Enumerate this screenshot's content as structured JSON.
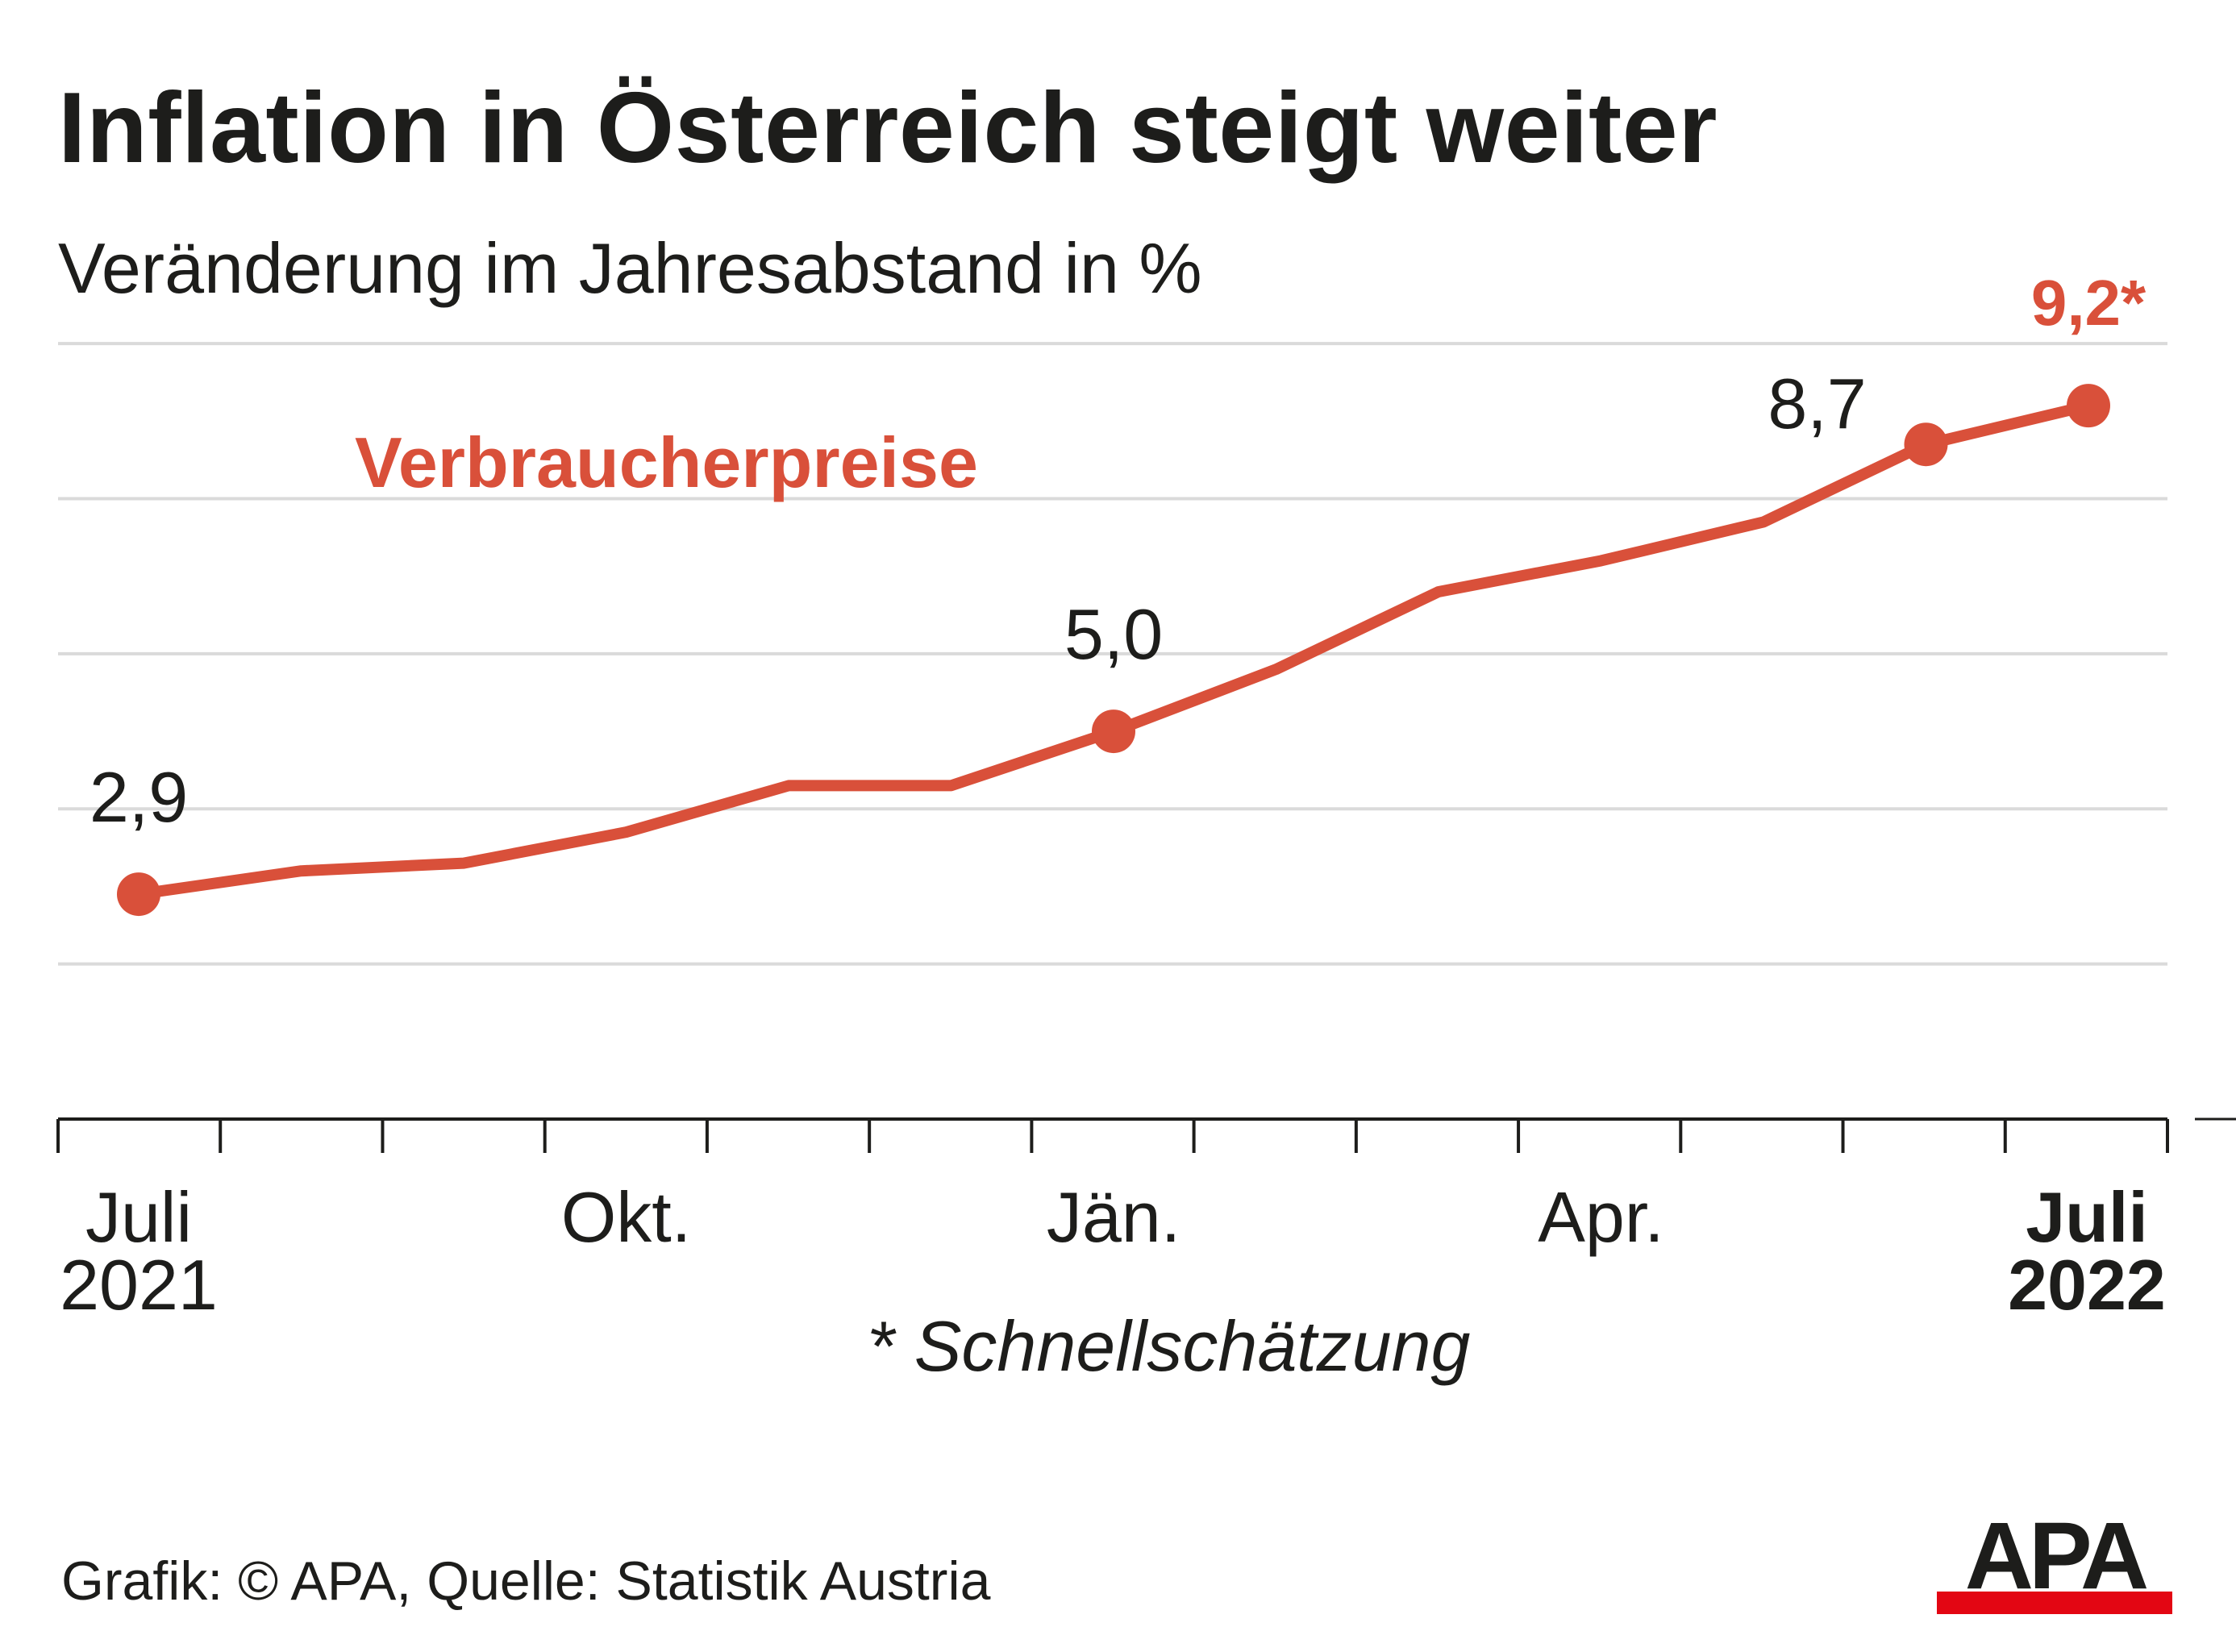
{
  "header": {
    "title": "Inflation in Österreich steigt weiter",
    "subtitle": "Veränderung im Jahresabstand in %"
  },
  "footer": {
    "source": "Grafik: © APA, Quelle: Statistik Austria"
  },
  "logo": {
    "text": "APA",
    "stripe_color": "#e30613"
  },
  "colors": {
    "line": "#d9503a",
    "grid": "#dadada",
    "axis": "#1d1d1b",
    "text": "#1d1d1b"
  },
  "chart_data": {
    "type": "line",
    "title": "Inflation in Österreich steigt weiter",
    "subtitle": "Veränderung im Jahresabstand in %",
    "series_label": "Verbraucherpreise",
    "x": [
      "2021-07",
      "2021-08",
      "2021-09",
      "2021-10",
      "2021-11",
      "2021-12",
      "2022-01",
      "2022-02",
      "2022-03",
      "2022-04",
      "2022-05",
      "2022-06",
      "2022-07"
    ],
    "series": [
      {
        "name": "Verbraucherpreise",
        "values": [
          2.9,
          3.2,
          3.3,
          3.7,
          4.3,
          4.3,
          5.0,
          5.8,
          6.8,
          7.2,
          7.7,
          8.7,
          9.2
        ]
      }
    ],
    "ylim": [
      0,
      11
    ],
    "y_grid": [
      2,
      4,
      6,
      8,
      10
    ],
    "grid": true,
    "x_ticks": 14,
    "x_tick_labels": [
      {
        "index": 0,
        "lines": [
          "Juli",
          "2021"
        ],
        "bold": false
      },
      {
        "index": 3,
        "lines": [
          "Okt."
        ],
        "bold": false
      },
      {
        "index": 6,
        "lines": [
          "Jän."
        ],
        "bold": false
      },
      {
        "index": 9,
        "lines": [
          "Apr."
        ],
        "bold": false
      },
      {
        "index": 12,
        "lines": [
          "Juli",
          "2022"
        ],
        "bold": true
      }
    ],
    "data_labels": [
      {
        "index": 0,
        "text": "2,9",
        "highlight": false
      },
      {
        "index": 6,
        "text": "5,0",
        "highlight": false
      },
      {
        "index": 11,
        "text": "8,7",
        "highlight": false
      },
      {
        "index": 12,
        "text": "9,2*",
        "highlight": true
      }
    ],
    "highlight_points": [
      0,
      6,
      11,
      12
    ],
    "footnote": "* Schnellschätzung"
  }
}
